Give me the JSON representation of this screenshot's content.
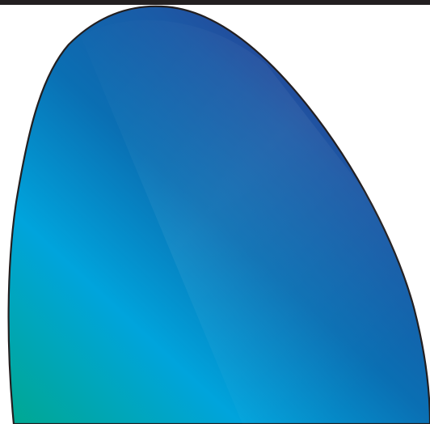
{
  "figure": {
    "shape_name": "gradient-petal-shape",
    "colors": {
      "background": "#ffffff",
      "top_border": "#231f20",
      "outline": "#231f20",
      "gradient": [
        "#00a88e",
        "#00a4dc",
        "#0a6fb3",
        "#1b5aa6",
        "#2e3a8f"
      ]
    }
  }
}
